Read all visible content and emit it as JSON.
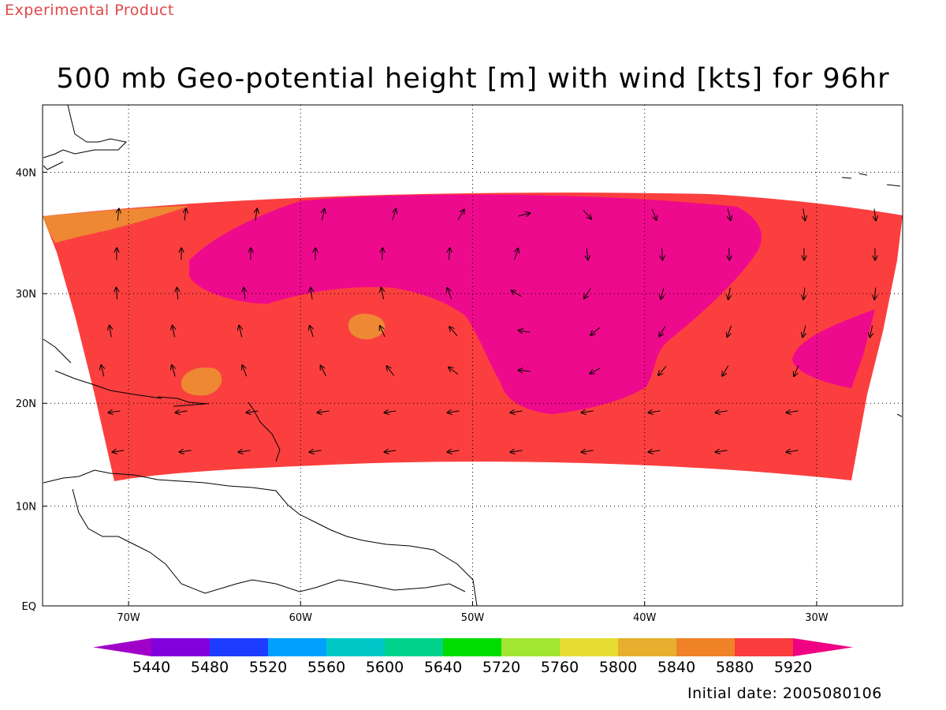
{
  "header": {
    "note": "Experimental Product"
  },
  "title": "500 mb Geo-potential height [m] with wind [kts] for 96hr",
  "footer": {
    "initial_date": "Initial date: 2005080106"
  },
  "colors": {
    "h5880": "#ee8833",
    "h5920": "#fb3f3f",
    "h5960": "#ee0a8c"
  },
  "chart_data": {
    "type": "heatmap",
    "title": "500 mb Geo-potential height [m] with wind [kts] for 96hr",
    "xlabel": "",
    "ylabel": "",
    "xlim": [
      -75,
      -25
    ],
    "ylim": [
      0,
      45
    ],
    "x_ticks": [
      {
        "value": -70,
        "label": "70W"
      },
      {
        "value": -60,
        "label": "60W"
      },
      {
        "value": -50,
        "label": "50W"
      },
      {
        "value": -40,
        "label": "40W"
      },
      {
        "value": -30,
        "label": "30W"
      }
    ],
    "y_ticks": [
      {
        "value": 0,
        "label": "EQ"
      },
      {
        "value": 10,
        "label": "10N"
      },
      {
        "value": 20,
        "label": "20N"
      },
      {
        "value": 30,
        "label": "30N"
      },
      {
        "value": 40,
        "label": "40N"
      }
    ],
    "grid": true,
    "colorbar": {
      "levels": [
        "5440",
        "5480",
        "5520",
        "5560",
        "5600",
        "5640",
        "5720",
        "5760",
        "5800",
        "5840",
        "5880",
        "5920"
      ],
      "colors": [
        "#a000c8",
        "#8200dc",
        "#1e3cff",
        "#00a0ff",
        "#00c8c8",
        "#00d28c",
        "#00dc00",
        "#a0e632",
        "#e6dc32",
        "#e6af2d",
        "#f08228",
        "#fa3c3c",
        "#f00082"
      ]
    }
  }
}
